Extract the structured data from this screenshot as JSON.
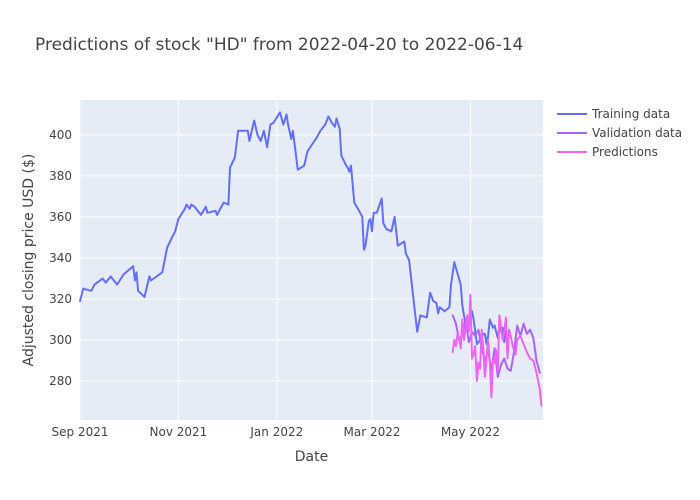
{
  "chart_data": {
    "type": "line",
    "title": "Predictions of stock \"HD\" from 2022-04-20 to 2022-06-14",
    "xlabel": "Date",
    "ylabel": "Adjusted closing price USD ($)",
    "xlim": [
      "2021-09-01",
      "2022-06-15"
    ],
    "ylim": [
      261,
      417
    ],
    "x_ticks": [
      {
        "date": "2021-09-01",
        "label": "Sep 2021"
      },
      {
        "date": "2021-11-01",
        "label": "Nov 2021"
      },
      {
        "date": "2022-01-01",
        "label": "Jan 2022"
      },
      {
        "date": "2022-03-01",
        "label": "Mar 2022"
      },
      {
        "date": "2022-05-01",
        "label": "May 2022"
      }
    ],
    "y_ticks": [
      280,
      300,
      320,
      340,
      360,
      380,
      400
    ],
    "grid": true,
    "legend_position": "top-right",
    "series": [
      {
        "name": "Training data",
        "color": "#636efa",
        "points": [
          [
            "2021-09-01",
            319
          ],
          [
            "2021-09-03",
            325
          ],
          [
            "2021-09-08",
            324
          ],
          [
            "2021-09-10",
            327
          ],
          [
            "2021-09-15",
            330
          ],
          [
            "2021-09-17",
            328
          ],
          [
            "2021-09-20",
            331
          ],
          [
            "2021-09-24",
            327
          ],
          [
            "2021-09-28",
            332
          ],
          [
            "2021-10-04",
            336
          ],
          [
            "2021-10-05",
            329
          ],
          [
            "2021-10-06",
            333
          ],
          [
            "2021-10-07",
            324
          ],
          [
            "2021-10-11",
            321
          ],
          [
            "2021-10-14",
            331
          ],
          [
            "2021-10-15",
            329
          ],
          [
            "2021-10-22",
            333
          ],
          [
            "2021-10-25",
            345
          ],
          [
            "2021-10-28",
            350
          ],
          [
            "2021-10-30",
            353
          ],
          [
            "2021-11-01",
            359
          ],
          [
            "2021-11-05",
            364
          ],
          [
            "2021-11-06",
            366
          ],
          [
            "2021-11-08",
            364
          ],
          [
            "2021-11-09",
            366
          ],
          [
            "2021-11-11",
            365
          ],
          [
            "2021-11-15",
            361
          ],
          [
            "2021-11-18",
            365
          ],
          [
            "2021-11-19",
            362
          ],
          [
            "2021-11-24",
            363
          ],
          [
            "2021-11-25",
            361
          ],
          [
            "2021-11-29",
            367
          ],
          [
            "2021-12-02",
            366
          ],
          [
            "2021-12-03",
            384
          ],
          [
            "2021-12-06",
            389
          ],
          [
            "2021-12-08",
            402
          ],
          [
            "2021-12-14",
            402
          ],
          [
            "2021-12-15",
            397
          ],
          [
            "2021-12-18",
            407
          ],
          [
            "2021-12-20",
            400
          ],
          [
            "2021-12-22",
            397
          ],
          [
            "2021-12-24",
            402
          ],
          [
            "2021-12-26",
            394
          ],
          [
            "2021-12-28",
            405
          ],
          [
            "2021-12-30",
            406
          ],
          [
            "2022-01-03",
            411
          ],
          [
            "2022-01-05",
            405
          ],
          [
            "2022-01-07",
            410
          ],
          [
            "2022-01-08",
            405
          ],
          [
            "2022-01-10",
            398
          ],
          [
            "2022-01-11",
            402
          ],
          [
            "2022-01-14",
            383
          ],
          [
            "2022-01-18",
            385
          ],
          [
            "2022-01-20",
            392
          ],
          [
            "2022-01-26",
            399
          ],
          [
            "2022-01-28",
            402
          ],
          [
            "2022-01-31",
            405
          ],
          [
            "2022-02-02",
            409
          ],
          [
            "2022-02-04",
            406
          ],
          [
            "2022-02-06",
            404
          ],
          [
            "2022-02-07",
            408
          ],
          [
            "2022-02-09",
            403
          ],
          [
            "2022-02-10",
            390
          ],
          [
            "2022-02-13",
            385
          ],
          [
            "2022-02-14",
            384
          ],
          [
            "2022-02-15",
            382
          ],
          [
            "2022-02-16",
            385
          ],
          [
            "2022-02-18",
            367
          ],
          [
            "2022-02-21",
            363
          ],
          [
            "2022-02-23",
            360
          ],
          [
            "2022-02-24",
            344
          ],
          [
            "2022-02-25",
            346
          ],
          [
            "2022-02-27",
            358
          ],
          [
            "2022-02-28",
            359
          ],
          [
            "2022-03-01",
            353
          ],
          [
            "2022-03-02",
            362
          ],
          [
            "2022-03-04",
            362
          ],
          [
            "2022-03-07",
            369
          ],
          [
            "2022-03-08",
            357
          ],
          [
            "2022-03-10",
            354
          ],
          [
            "2022-03-13",
            353
          ],
          [
            "2022-03-15",
            360
          ],
          [
            "2022-03-17",
            346
          ],
          [
            "2022-03-21",
            348
          ],
          [
            "2022-03-22",
            342
          ],
          [
            "2022-03-24",
            339
          ],
          [
            "2022-03-26",
            325
          ],
          [
            "2022-03-29",
            304
          ],
          [
            "2022-03-31",
            312
          ],
          [
            "2022-04-04",
            311
          ],
          [
            "2022-04-06",
            323
          ],
          [
            "2022-04-08",
            319
          ],
          [
            "2022-04-10",
            318
          ],
          [
            "2022-04-11",
            313
          ],
          [
            "2022-04-12",
            316
          ],
          [
            "2022-04-15",
            314
          ],
          [
            "2022-04-18",
            316
          ],
          [
            "2022-04-19",
            327
          ],
          [
            "2022-04-21",
            338
          ],
          [
            "2022-04-25",
            327
          ],
          [
            "2022-04-26",
            317
          ],
          [
            "2022-04-27",
            312
          ],
          [
            "2022-04-28",
            308
          ],
          [
            "2022-05-01",
            311
          ],
          [
            "2022-05-02",
            314
          ],
          [
            "2022-05-03",
            310
          ],
          [
            "2022-05-05",
            298
          ],
          [
            "2022-05-07",
            300
          ],
          [
            "2022-05-09",
            303
          ],
          [
            "2022-05-10",
            303
          ],
          [
            "2022-05-11",
            298
          ],
          [
            "2022-05-12",
            302
          ],
          [
            "2022-05-13",
            310
          ],
          [
            "2022-05-15",
            306
          ],
          [
            "2022-05-16",
            307
          ],
          [
            "2022-05-18",
            301
          ],
          [
            "2022-05-19",
            306
          ],
          [
            "2022-05-20",
            304
          ],
          [
            "2022-05-21",
            306
          ],
          [
            "2022-05-22",
            299
          ],
          [
            "2022-05-23",
            305
          ]
        ]
      },
      {
        "name": "Validation data",
        "color": "#ab63fa",
        "points": [
          [
            "2022-04-20",
            312
          ],
          [
            "2022-04-22",
            308
          ],
          [
            "2022-04-24",
            300
          ],
          [
            "2022-04-26",
            302
          ],
          [
            "2022-04-28",
            310
          ],
          [
            "2022-04-30",
            299
          ],
          [
            "2022-05-02",
            304
          ],
          [
            "2022-05-04",
            302
          ],
          [
            "2022-05-06",
            305
          ],
          [
            "2022-05-08",
            296
          ],
          [
            "2022-05-10",
            290
          ],
          [
            "2022-05-12",
            295
          ],
          [
            "2022-05-14",
            285
          ],
          [
            "2022-05-16",
            296
          ],
          [
            "2022-05-18",
            282
          ],
          [
            "2022-05-20",
            288
          ],
          [
            "2022-05-22",
            291
          ],
          [
            "2022-05-24",
            286
          ],
          [
            "2022-05-26",
            285
          ],
          [
            "2022-05-28",
            294
          ],
          [
            "2022-05-30",
            307
          ],
          [
            "2022-06-01",
            302
          ],
          [
            "2022-06-03",
            308
          ],
          [
            "2022-06-05",
            303
          ],
          [
            "2022-06-07",
            305
          ],
          [
            "2022-06-09",
            301
          ],
          [
            "2022-06-11",
            290
          ],
          [
            "2022-06-13",
            284
          ]
        ]
      },
      {
        "name": "Predictions",
        "color": "#f062f0",
        "points": [
          [
            "2022-04-20",
            294
          ],
          [
            "2022-04-21",
            300
          ],
          [
            "2022-04-22",
            297
          ],
          [
            "2022-04-23",
            303
          ],
          [
            "2022-04-24",
            301
          ],
          [
            "2022-04-25",
            296
          ],
          [
            "2022-04-26",
            310
          ],
          [
            "2022-04-27",
            300
          ],
          [
            "2022-04-28",
            306
          ],
          [
            "2022-04-29",
            312
          ],
          [
            "2022-04-30",
            304
          ],
          [
            "2022-05-01",
            322
          ],
          [
            "2022-05-02",
            291
          ],
          [
            "2022-05-03",
            293
          ],
          [
            "2022-05-04",
            297
          ],
          [
            "2022-05-05",
            280
          ],
          [
            "2022-05-06",
            289
          ],
          [
            "2022-05-07",
            286
          ],
          [
            "2022-05-08",
            305
          ],
          [
            "2022-05-09",
            296
          ],
          [
            "2022-05-10",
            282
          ],
          [
            "2022-05-11",
            291
          ],
          [
            "2022-05-12",
            300
          ],
          [
            "2022-05-13",
            290
          ],
          [
            "2022-05-14",
            272
          ],
          [
            "2022-05-15",
            290
          ],
          [
            "2022-05-16",
            289
          ],
          [
            "2022-05-17",
            295
          ],
          [
            "2022-05-18",
            285
          ],
          [
            "2022-05-19",
            312
          ],
          [
            "2022-05-20",
            306
          ],
          [
            "2022-05-21",
            300
          ],
          [
            "2022-05-22",
            304
          ],
          [
            "2022-05-23",
            311
          ],
          [
            "2022-05-24",
            291
          ],
          [
            "2022-05-25",
            305
          ],
          [
            "2022-05-26",
            302
          ],
          [
            "2022-05-27",
            298
          ],
          [
            "2022-05-28",
            295
          ],
          [
            "2022-05-29",
            293
          ],
          [
            "2022-05-30",
            300
          ],
          [
            "2022-06-01",
            302
          ],
          [
            "2022-06-03",
            298
          ],
          [
            "2022-06-05",
            294
          ],
          [
            "2022-06-07",
            291
          ],
          [
            "2022-06-09",
            290
          ],
          [
            "2022-06-11",
            284
          ],
          [
            "2022-06-13",
            276
          ],
          [
            "2022-06-14",
            268
          ]
        ]
      }
    ]
  }
}
